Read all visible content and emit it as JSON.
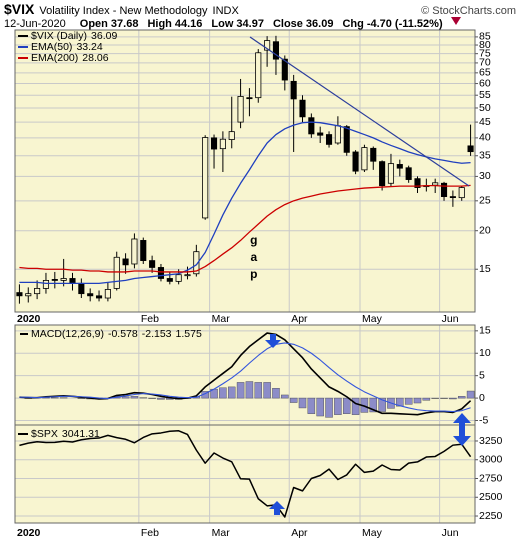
{
  "chart_data": [
    {
      "type": "candlestick",
      "title": "$VIX",
      "subtitle": "Volatility Index - New Methodology",
      "exchange": "INDX",
      "source": "© StockCharts.com",
      "date": "12-Jun-2020",
      "quote": [
        {
          "name": "Open",
          "value": 37.68
        },
        {
          "name": "High",
          "value": 44.16
        },
        {
          "name": "Low",
          "value": 34.97
        },
        {
          "name": "Close",
          "value": 36.09
        },
        {
          "name": "Chg",
          "value": -4.7,
          "label": "-4.70",
          "pct": -11.52,
          "pct_label": "(-11.52%)"
        }
      ],
      "categories": [
        "2020",
        null,
        null,
        null,
        null,
        null,
        null,
        null,
        null,
        null,
        null,
        null,
        null,
        null,
        "Feb",
        null,
        null,
        null,
        null,
        null,
        null,
        null,
        "Mar",
        null,
        null,
        null,
        null,
        null,
        null,
        null,
        null,
        "Apr",
        null,
        null,
        null,
        null,
        null,
        null,
        null,
        "May",
        null,
        null,
        null,
        null,
        null,
        null,
        null,
        null,
        "Jun",
        null,
        null,
        null
      ],
      "candles": {
        "name": "$VIX (Daily)",
        "color": "#000000",
        "open": [
          12.6,
          12.3,
          12.5,
          13.0,
          13.9,
          13.8,
          14.0,
          13.5,
          12.5,
          12.3,
          12.1,
          13.0,
          16.2,
          15.6,
          18.6,
          16.0,
          15.2,
          14.0,
          13.7,
          14.4,
          14.5,
          22.0,
          40.0,
          36.9,
          39.5,
          45.0,
          54.0,
          54.0,
          77.0,
          82.0,
          72.0,
          61.0,
          53.0,
          46.5,
          41.5,
          41.0,
          38.5,
          43.5,
          36.0,
          31.5,
          37.0,
          33.5,
          28.5,
          32.8,
          32.0,
          29.5,
          27.8,
          28.1,
          28.5,
          25.8,
          25.6,
          37.68
        ],
        "high": [
          13.4,
          13.1,
          13.8,
          14.6,
          14.7,
          16.2,
          14.6,
          14.0,
          13.0,
          12.8,
          13.6,
          17.1,
          16.9,
          19.6,
          19.0,
          16.6,
          15.6,
          14.7,
          15.0,
          15.3,
          18.0,
          40.8,
          41.0,
          42.0,
          54.4,
          62.1,
          58.0,
          77.6,
          85.5,
          85.7,
          74.0,
          64.0,
          55.0,
          48.0,
          43.5,
          42.0,
          47.0,
          44.0,
          36.5,
          38.0,
          37.5,
          33.8,
          35.5,
          34.0,
          32.5,
          30.0,
          29.5,
          29.5,
          28.8,
          27.0,
          28.0,
          44.16
        ],
        "low": [
          11.6,
          11.7,
          12.0,
          12.5,
          13.0,
          13.2,
          12.8,
          12.1,
          11.8,
          11.8,
          11.8,
          12.8,
          14.5,
          15.1,
          15.6,
          14.6,
          13.7,
          13.4,
          13.4,
          13.9,
          14.2,
          21.7,
          31.8,
          31.0,
          37.0,
          43.0,
          47.0,
          52.0,
          68.0,
          64.0,
          57.0,
          36.0,
          45.0,
          40.0,
          38.5,
          37.2,
          38.0,
          35.0,
          30.5,
          31.0,
          31.5,
          27.0,
          27.8,
          30.0,
          28.6,
          26.5,
          26.8,
          26.5,
          25.0,
          23.9,
          25.0,
          34.97
        ],
        "close": [
          12.3,
          12.5,
          13.0,
          13.8,
          13.8,
          14.0,
          13.5,
          12.5,
          12.3,
          12.1,
          12.9,
          16.4,
          15.5,
          18.8,
          16.0,
          15.2,
          14.0,
          13.7,
          14.4,
          14.4,
          17.1,
          40.1,
          36.8,
          39.6,
          41.9,
          54.5,
          53.9,
          75.5,
          82.7,
          72.0,
          61.6,
          53.5,
          46.8,
          41.2,
          40.8,
          38.1,
          43.8,
          35.9,
          31.2,
          37.2,
          33.6,
          28.0,
          33.0,
          31.9,
          29.3,
          27.6,
          28.0,
          28.6,
          25.8,
          25.7,
          27.6,
          36.09
        ]
      },
      "series": [
        {
          "name": "EMA(50)",
          "color": "#1f3fbf",
          "values": [
            13.6,
            13.6,
            13.6,
            13.5,
            13.5,
            13.5,
            13.5,
            13.5,
            13.5,
            13.5,
            13.6,
            13.7,
            13.8,
            14.0,
            14.1,
            14.2,
            14.3,
            14.4,
            14.5,
            14.9,
            15.5,
            17.0,
            19.5,
            22.5,
            25.5,
            28.5,
            31.5,
            35,
            38.5,
            41,
            42.8,
            44,
            44.8,
            45,
            44.8,
            44.3,
            43.8,
            43,
            42,
            41,
            40,
            38.8,
            37.8,
            36.9,
            36,
            35.3,
            34.7,
            34.2,
            33.8,
            33.4,
            33.1,
            33.24
          ]
        },
        {
          "name": "EMA(200)",
          "color": "#cc0000",
          "values": [
            15.2,
            15.1,
            15.1,
            15.0,
            15.0,
            15.0,
            14.9,
            14.9,
            14.8,
            14.8,
            14.7,
            14.7,
            14.7,
            14.8,
            14.8,
            14.8,
            14.7,
            14.7,
            14.7,
            14.7,
            14.8,
            15.3,
            16,
            16.8,
            17.6,
            18.6,
            19.8,
            21.0,
            22.3,
            23.4,
            24.3,
            25.0,
            25.5,
            25.9,
            26.3,
            26.6,
            26.9,
            27.1,
            27.3,
            27.5,
            27.6,
            27.7,
            27.8,
            27.9,
            27.9,
            27.9,
            28.0,
            28.0,
            27.9,
            27.9,
            27.9,
            28.06
          ]
        }
      ],
      "annotations": [
        {
          "text": "gap",
          "color": "#2233bb"
        }
      ],
      "log": true,
      "ylim": [
        10.9,
        89.5
      ],
      "yticks": [
        15,
        20,
        25,
        30,
        35,
        40,
        45,
        50,
        55,
        60,
        65,
        70,
        75,
        80,
        85
      ],
      "grid": true,
      "background": "#f8f5d0"
    },
    {
      "type": "macd",
      "ylim": [
        -6,
        16.3
      ],
      "yticks": [
        -5,
        0,
        5,
        10,
        15
      ],
      "grid": true,
      "background": "#f8f5d0",
      "series": [
        {
          "name": "MACD(12,26,9)",
          "color": "#000000",
          "style": "line",
          "values": [
            0.2,
            0.1,
            0.1,
            0.3,
            0.4,
            0.5,
            0.4,
            0.2,
            0.0,
            -0.2,
            -0.1,
            0.6,
            0.8,
            1.2,
            1.1,
            0.8,
            0.4,
            0.1,
            -0.1,
            0.0,
            0.5,
            2.5,
            4.0,
            5.5,
            7.0,
            9.5,
            11.5,
            13.0,
            14.5,
            14.2,
            13.0,
            11.0,
            9.0,
            6.5,
            4.5,
            2.5,
            1.5,
            0.3,
            -1.2,
            -1.8,
            -2.6,
            -3.4,
            -3.4,
            -3.5,
            -3.6,
            -3.7,
            -3.3,
            -3.0,
            -3.0,
            -3.2,
            -2.4,
            -0.578
          ]
        },
        {
          "color": "#3355dd",
          "style": "line",
          "values": [
            0.2,
            0.2,
            0.1,
            0.2,
            0.3,
            0.4,
            0.4,
            0.3,
            0.2,
            0.0,
            -0.1,
            0.2,
            0.5,
            0.8,
            1.0,
            0.9,
            0.7,
            0.4,
            0.2,
            0.1,
            0.2,
            1.0,
            2.0,
            3.2,
            4.5,
            6.0,
            7.8,
            9.5,
            11.0,
            12.0,
            12.3,
            12.0,
            11.2,
            10.0,
            8.5,
            6.8,
            5.2,
            3.8,
            2.5,
            1.4,
            0.5,
            -0.4,
            -1.1,
            -1.7,
            -2.2,
            -2.6,
            -2.8,
            -2.9,
            -2.9,
            -3.0,
            -2.8,
            -2.153
          ]
        },
        {
          "color": "#8c8cc8",
          "style": "bar",
          "values": [
            0.0,
            -0.1,
            0.0,
            0.1,
            0.1,
            0.1,
            0.0,
            -0.1,
            -0.2,
            -0.2,
            0.0,
            0.4,
            0.3,
            0.4,
            0.1,
            -0.1,
            -0.3,
            -0.3,
            -0.3,
            -0.1,
            0.3,
            1.5,
            2.0,
            2.3,
            2.5,
            3.5,
            3.7,
            3.5,
            3.5,
            2.2,
            0.7,
            -1.0,
            -2.2,
            -3.5,
            -4.0,
            -4.3,
            -3.7,
            -3.5,
            -3.7,
            -3.2,
            -3.1,
            -3.0,
            -2.3,
            -1.8,
            -1.4,
            -1.1,
            -0.5,
            -0.1,
            -0.1,
            -0.2,
            0.4,
            1.575
          ]
        }
      ]
    },
    {
      "type": "line",
      "ylim": [
        2157,
        3463
      ],
      "yticks": [
        2250,
        2500,
        2750,
        3000,
        3250
      ],
      "grid": true,
      "background": "#f8f5d0",
      "categories": [
        "2020",
        null,
        null,
        null,
        null,
        null,
        null,
        null,
        null,
        null,
        null,
        null,
        null,
        null,
        "Feb",
        null,
        null,
        null,
        null,
        null,
        null,
        null,
        "Mar",
        null,
        null,
        null,
        null,
        null,
        null,
        null,
        null,
        "Apr",
        null,
        null,
        null,
        null,
        null,
        null,
        null,
        "May",
        null,
        null,
        null,
        null,
        null,
        null,
        null,
        null,
        "Jun",
        null,
        null,
        null
      ],
      "series": [
        {
          "name": "$SPX",
          "color": "#000000",
          "values": [
            3191,
            3221,
            3240,
            3230,
            3231,
            3246,
            3237,
            3266,
            3283,
            3289,
            3325,
            3295,
            3273,
            3226,
            3297,
            3345,
            3357,
            3380,
            3386,
            3337,
            3128,
            2954,
            3090,
            3023,
            2972,
            2746,
            2741,
            2480,
            2386,
            2398,
            2237,
            2630,
            2585,
            2750,
            2790,
            2875,
            2737,
            2798,
            2940,
            2831,
            2848,
            2930,
            2870,
            2863,
            2955,
            2971,
            3036,
            3044,
            3112,
            3194,
            3207,
            3041.31
          ]
        }
      ]
    }
  ]
}
